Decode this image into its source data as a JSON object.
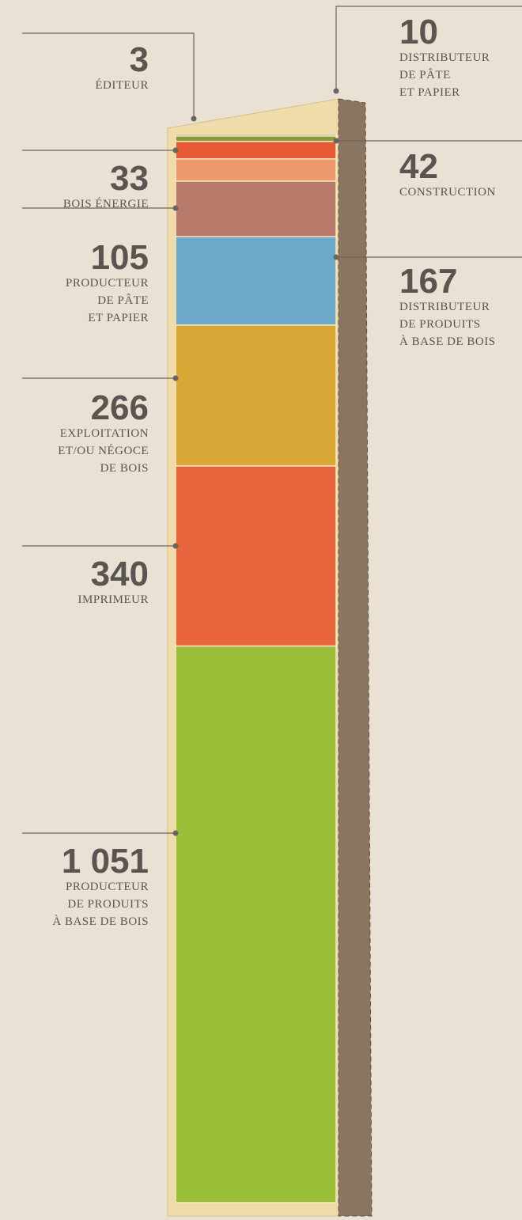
{
  "chart_data": {
    "type": "stacked-bar",
    "categories": [
      "ÉDITEUR",
      "DISTRIBUTEUR\nDE PÂTE\nET PAPIER",
      "BOIS ÉNERGIE",
      "CONSTRUCTION",
      "PRODUCTEUR\nDE PÂTE\nET PAPIER",
      "DISTRIBUTEUR\nDE PRODUITS\nÀ BASE DE BOIS",
      "EXPLOITATION\nET/OU NÉGOCE\nDE BOIS",
      "IMPRIMEUR",
      "PRODUCTEUR\nDE PRODUITS\nÀ BASE DE BOIS"
    ],
    "values": [
      3,
      10,
      33,
      42,
      105,
      167,
      266,
      340,
      1051
    ],
    "value_labels": [
      "3",
      "10",
      "33",
      "42",
      "105",
      "167",
      "266",
      "340",
      "1 051"
    ],
    "colors": [
      "#3f7a3a",
      "#8a9a3a",
      "#e65a35",
      "#ee9a6e",
      "#b87a6a",
      "#6fa9c9",
      "#d9a736",
      "#e8643c",
      "#9cbf3a"
    ]
  }
}
